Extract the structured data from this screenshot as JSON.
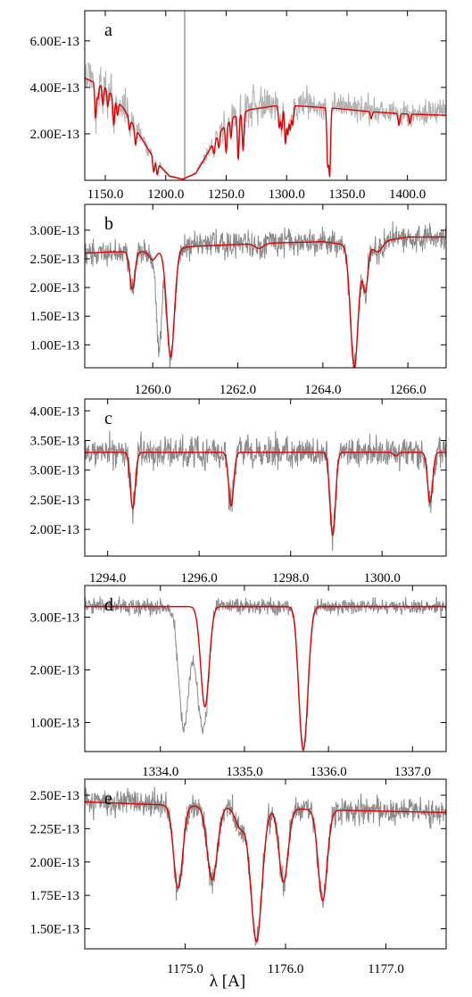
{
  "xlabel": "λ  [A]",
  "colors": {
    "data": "#8a8a8a",
    "data_light": "#b3b3b3",
    "model": "#e00000",
    "axis": "#000000"
  },
  "chart_data": [
    {
      "panel": "a",
      "type": "line",
      "label": "a",
      "xlim": [
        1133,
        1432
      ],
      "ylim": [
        0,
        7.3e-13
      ],
      "xticks": [
        "1150.0",
        "1200.0",
        "1250.0",
        "1300.0",
        "1350.0",
        "1400.0"
      ],
      "yticks": [
        "6.00E-13",
        "4.00E-13",
        "2.00E-13"
      ],
      "model": {
        "continuum": [
          [
            1133,
            4.4e-13
          ],
          [
            1150,
            4e-13
          ],
          [
            1165,
            3.1e-13
          ],
          [
            1180,
            1.8e-13
          ],
          [
            1192,
            8e-14
          ],
          [
            1203,
            1.8e-14
          ],
          [
            1214,
            5e-15
          ],
          [
            1225,
            3e-14
          ],
          [
            1235,
            1.2e-13
          ],
          [
            1245,
            2.1e-13
          ],
          [
            1255,
            2.7e-13
          ],
          [
            1270,
            3.05e-13
          ],
          [
            1290,
            3.2e-13
          ],
          [
            1310,
            3.2e-13
          ],
          [
            1340,
            3.1e-13
          ],
          [
            1370,
            2.95e-13
          ],
          [
            1400,
            2.85e-13
          ],
          [
            1432,
            2.8e-13
          ]
        ],
        "lines": [
          [
            1142,
            1.5e-13
          ],
          [
            1144,
            6e-14
          ],
          [
            1148,
            8e-14
          ],
          [
            1152,
            7e-14
          ],
          [
            1157,
            1.2e-13
          ],
          [
            1160,
            6e-14
          ],
          [
            1170,
            5e-14
          ],
          [
            1175,
            7e-14
          ],
          [
            1190,
            6e-14
          ],
          [
            1193,
            5e-14
          ],
          [
            1240,
            5e-14
          ],
          [
            1244,
            6e-14
          ],
          [
            1250,
            1.2e-13
          ],
          [
            1254,
            8e-14
          ],
          [
            1260,
            1.9e-13
          ],
          [
            1264,
            1.6e-13
          ],
          [
            1294,
            9e-14
          ],
          [
            1296,
            1e-13
          ],
          [
            1299,
            1.6e-13
          ],
          [
            1301,
            1.2e-13
          ],
          [
            1303,
            1e-13
          ],
          [
            1305,
            8e-14
          ],
          [
            1334,
            2.4e-13
          ],
          [
            1335.7,
            2.8e-13
          ],
          [
            1370,
            3e-14
          ],
          [
            1393,
            5e-14
          ],
          [
            1402,
            4e-14
          ]
        ],
        "width": 0.7
      },
      "data": {
        "noise": 8.5e-14,
        "scale": 1.05,
        "light": true,
        "spike_x": 1215.7,
        "wide_noise": [
          [
            1290,
            1432,
            6e-14
          ]
        ]
      }
    },
    {
      "panel": "b",
      "type": "line",
      "label": "b",
      "xlim": [
        1258.4,
        1266.9
      ],
      "ylim": [
        6e-14,
        3.45e-13
      ],
      "xticks": [
        "1260.0",
        "1262.0",
        "1264.0",
        "1266.0"
      ],
      "yticks": [
        "3.00E-13",
        "2.50E-13",
        "2.00E-13",
        "1.50E-13",
        "1.00E-13"
      ],
      "model": {
        "continuum": [
          [
            1258.4,
            2.6e-13
          ],
          [
            1259,
            2.62e-13
          ],
          [
            1260,
            2.63e-13
          ],
          [
            1261,
            2.72e-13
          ],
          [
            1262,
            2.75e-13
          ],
          [
            1263,
            2.78e-13
          ],
          [
            1264,
            2.8e-13
          ],
          [
            1265,
            2.7e-13
          ],
          [
            1265.5,
            2.82e-13
          ],
          [
            1266,
            2.88e-13
          ],
          [
            1266.9,
            2.88e-13
          ]
        ],
        "lines": [
          [
            1259.52,
            6.5e-14,
            0.06
          ],
          [
            1260.0,
            1.5e-14,
            0.08
          ],
          [
            1260.42,
            1.88e-13,
            0.09
          ],
          [
            1262.5,
            8e-15,
            0.1
          ],
          [
            1264.74,
            2.12e-13,
            0.09
          ],
          [
            1265.0,
            7.5e-14,
            0.06
          ],
          [
            1265.3,
            1.5e-14,
            0.1
          ]
        ],
        "width": 0.08
      },
      "data": {
        "noise": 2.2e-14,
        "extra": [
          [
            1260.15,
            1.7e-13,
            0.06
          ]
        ]
      }
    },
    {
      "panel": "c",
      "type": "line",
      "label": "c",
      "xlim": [
        1293.5,
        1301.4
      ],
      "ylim": [
        1.55e-13,
        4.2e-13
      ],
      "xticks": [
        "1294.0",
        "1296.0",
        "1298.0",
        "1300.0"
      ],
      "yticks": [
        "4.00E-13",
        "3.50E-13",
        "3.00E-13",
        "2.50E-13",
        "2.00E-13"
      ],
      "model": {
        "continuum": [
          [
            1293.5,
            3.3e-13
          ],
          [
            1301.4,
            3.3e-13
          ]
        ],
        "lines": [
          [
            1294.55,
            9.5e-14,
            0.055
          ],
          [
            1296.7,
            9e-14,
            0.055
          ],
          [
            1298.92,
            1.4e-13,
            0.06
          ],
          [
            1301.05,
            8.5e-14,
            0.055
          ],
          [
            1300.3,
            6e-15,
            0.05
          ]
        ],
        "width": 0.06
      },
      "data": {
        "noise": 2.6e-14
      }
    },
    {
      "panel": "d",
      "type": "line",
      "label": "d",
      "xlim": [
        1333.1,
        1337.4
      ],
      "ylim": [
        4.5e-14,
        3.6e-13
      ],
      "xticks": [
        "1334.0",
        "1335.0",
        "1336.0",
        "1337.0"
      ],
      "yticks": [
        "3.00E-13",
        "2.00E-13",
        "1.00E-13"
      ],
      "model": {
        "continuum": [
          [
            1333.1,
            3.2e-13
          ],
          [
            1337.4,
            3.2e-13
          ]
        ],
        "lines": [
          [
            1334.53,
            1.9e-13,
            0.05
          ],
          [
            1335.71,
            2.4e-13,
            0.05
          ],
          [
            1335.66,
            6e-14,
            0.04
          ]
        ],
        "width": 0.05
      },
      "data": {
        "noise": 1.5e-14,
        "extra": [
          [
            1334.28,
            2.3e-13,
            0.06
          ],
          [
            1334.45,
            1.2e-13,
            0.05
          ]
        ]
      }
    },
    {
      "panel": "e",
      "type": "line",
      "label": "e",
      "xlim": [
        1174.0,
        1177.6
      ],
      "ylim": [
        1.35e-13,
        2.62e-13
      ],
      "xticks": [
        "1175.0",
        "1176.0",
        "1177.0"
      ],
      "yticks": [
        "2.50E-13",
        "2.25E-13",
        "2.00E-13",
        "1.75E-13",
        "1.50E-13"
      ],
      "model": {
        "continuum": [
          [
            1174.0,
            2.45e-13
          ],
          [
            1174.7,
            2.43e-13
          ],
          [
            1176.4,
            2.39e-13
          ],
          [
            1177.6,
            2.37e-13
          ]
        ],
        "lines": [
          [
            1174.93,
            6.2e-14,
            0.045
          ],
          [
            1175.27,
            5.5e-14,
            0.05
          ],
          [
            1175.71,
            1e-13,
            0.055
          ],
          [
            1175.98,
            5.5e-14,
            0.045
          ],
          [
            1176.37,
            6.8e-14,
            0.045
          ],
          [
            1175.55,
            1.5e-14,
            0.05
          ]
        ],
        "width": 0.05
      },
      "data": {
        "noise": 1e-14
      }
    }
  ]
}
